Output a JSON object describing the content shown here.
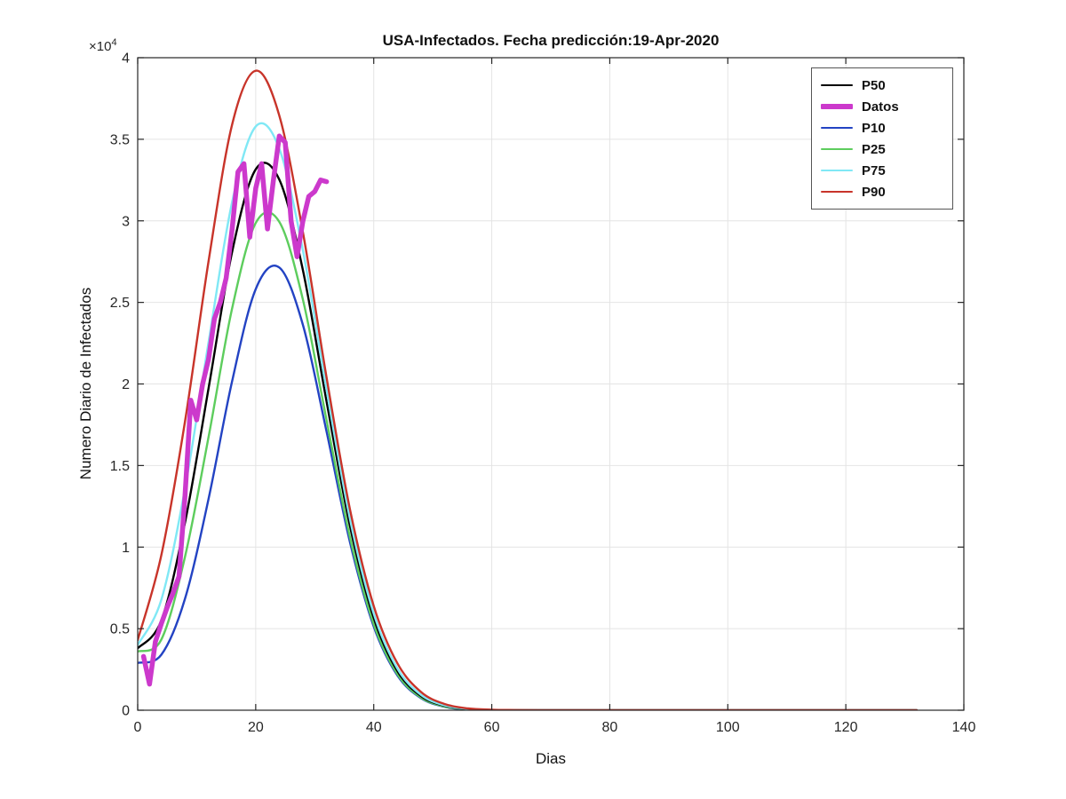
{
  "figure": {
    "background": "#ffffff"
  },
  "chart_data": {
    "type": "line",
    "title": "USA-Infectados. Fecha predicción:19-Apr-2020",
    "xlabel": "Dias",
    "ylabel": "Numero Diario de Infectados",
    "y_multiplier": "×10",
    "y_multiplier_exp": "4",
    "xlim": [
      0,
      140
    ],
    "ylim": [
      0,
      40000
    ],
    "xticks": [
      0,
      20,
      40,
      60,
      80,
      100,
      120,
      140
    ],
    "xtick_labels": [
      "0",
      "20",
      "40",
      "60",
      "80",
      "100",
      "120",
      "140"
    ],
    "yticks": [
      0,
      5000,
      10000,
      15000,
      20000,
      25000,
      30000,
      35000,
      40000
    ],
    "ytick_labels": [
      "0",
      "0.5",
      "1",
      "1.5",
      "2",
      "2.5",
      "3",
      "3.5",
      "4"
    ],
    "grid": true,
    "grid_color": "#e4e4e4",
    "axis_color": "#262626",
    "legend_position": "top-right",
    "legend": [
      "P50",
      "Datos",
      "P10",
      "P25",
      "P75",
      "P90"
    ],
    "series": [
      {
        "name": "P10",
        "color": "#2343c3",
        "width": 2.4,
        "smooth": true,
        "x": [
          0,
          4,
          8,
          12,
          16,
          20,
          24,
          28,
          32,
          36,
          40,
          44,
          48,
          52,
          56,
          60,
          64,
          68,
          72,
          76,
          80,
          84,
          88,
          92,
          96,
          100,
          104,
          108,
          112,
          116,
          120,
          124,
          128,
          132
        ],
        "y": [
          2900,
          3400,
          6810,
          12940,
          20170,
          25820,
          27140,
          23620,
          17090,
          10270,
          5130,
          2140,
          740,
          210,
          50,
          10,
          3,
          1,
          0,
          0,
          0,
          0,
          0,
          0,
          0,
          0,
          0,
          0,
          0,
          0,
          0,
          0,
          0,
          0
        ]
      },
      {
        "name": "P25",
        "color": "#5dcd5d",
        "width": 2.4,
        "smooth": true,
        "x": [
          0,
          4,
          8,
          12,
          16,
          20,
          24,
          28,
          32,
          36,
          40,
          44,
          48,
          52,
          56,
          60,
          64,
          68,
          72,
          76,
          80,
          84,
          88,
          92,
          96,
          100,
          104,
          108,
          112,
          116,
          120,
          124,
          128,
          132
        ],
        "y": [
          3600,
          4330,
          9370,
          16730,
          24630,
          29870,
          29940,
          25170,
          17790,
          10570,
          5280,
          2220,
          780,
          230,
          60,
          12,
          4,
          2,
          1,
          0,
          0,
          0,
          0,
          0,
          0,
          0,
          0,
          0,
          0,
          0,
          0,
          0,
          0,
          0
        ]
      },
      {
        "name": "P50",
        "color": "#000000",
        "width": 2.4,
        "smooth": true,
        "x": [
          0,
          4,
          8,
          12,
          16,
          20,
          24,
          28,
          32,
          36,
          40,
          44,
          48,
          52,
          56,
          60,
          64,
          68,
          72,
          76,
          80,
          84,
          88,
          92,
          96,
          100,
          104,
          108,
          112,
          116,
          120,
          124,
          128,
          132
        ],
        "y": [
          3800,
          5500,
          11460,
          19710,
          28100,
          33160,
          32530,
          26970,
          18930,
          11250,
          5660,
          2410,
          870,
          270,
          70,
          15,
          5,
          2,
          1,
          1,
          0,
          0,
          0,
          0,
          0,
          0,
          0,
          0,
          0,
          0,
          0,
          0,
          0,
          0
        ]
      },
      {
        "name": "P75",
        "color": "#80e8f5",
        "width": 2.4,
        "smooth": true,
        "x": [
          0,
          4,
          8,
          12,
          16,
          20,
          24,
          28,
          32,
          36,
          40,
          44,
          48,
          52,
          56,
          60,
          64,
          68,
          72,
          76,
          80,
          84,
          88,
          92,
          96,
          100,
          104,
          108,
          112,
          116,
          120,
          124,
          128,
          132
        ],
        "y": [
          4000,
          6770,
          13550,
          22530,
          31150,
          35790,
          34420,
          28180,
          19660,
          11690,
          5920,
          2560,
          940,
          300,
          80,
          18,
          6,
          3,
          2,
          1,
          1,
          0,
          0,
          0,
          0,
          0,
          0,
          0,
          0,
          0,
          0,
          0,
          0,
          0
        ]
      },
      {
        "name": "P90",
        "color": "#c8342a",
        "width": 2.4,
        "smooth": true,
        "x": [
          0,
          4,
          8,
          12,
          16,
          20,
          24,
          28,
          32,
          36,
          40,
          44,
          48,
          52,
          56,
          60,
          64,
          68,
          72,
          76,
          80,
          84,
          88,
          92,
          96,
          100,
          104,
          108,
          112,
          116,
          120,
          124,
          128,
          132
        ],
        "y": [
          4300,
          9500,
          17650,
          27500,
          35900,
          39200,
          36450,
          29300,
          20400,
          12270,
          6390,
          2880,
          1120,
          380,
          110,
          30,
          10,
          5,
          3,
          2,
          2,
          1,
          1,
          1,
          1,
          0,
          0,
          0,
          0,
          0,
          0,
          0,
          0,
          0
        ]
      },
      {
        "name": "Datos",
        "color": "#cc39cc",
        "width": 5.5,
        "smooth": false,
        "x": [
          1,
          2,
          3,
          4,
          5,
          6,
          7,
          8,
          9,
          10,
          11,
          12,
          13,
          14,
          15,
          16,
          17,
          18,
          19,
          20,
          21,
          22,
          23,
          24,
          25,
          26,
          27,
          28,
          29,
          30,
          31,
          32
        ],
        "y": [
          3300,
          1600,
          4200,
          5300,
          6300,
          7200,
          8200,
          13000,
          19000,
          17800,
          20000,
          21500,
          24000,
          25000,
          26500,
          29500,
          33000,
          33500,
          29000,
          32000,
          33500,
          29500,
          32500,
          35200,
          34800,
          30000,
          27800,
          30000,
          31500,
          31800,
          32500,
          32400
        ]
      }
    ]
  }
}
